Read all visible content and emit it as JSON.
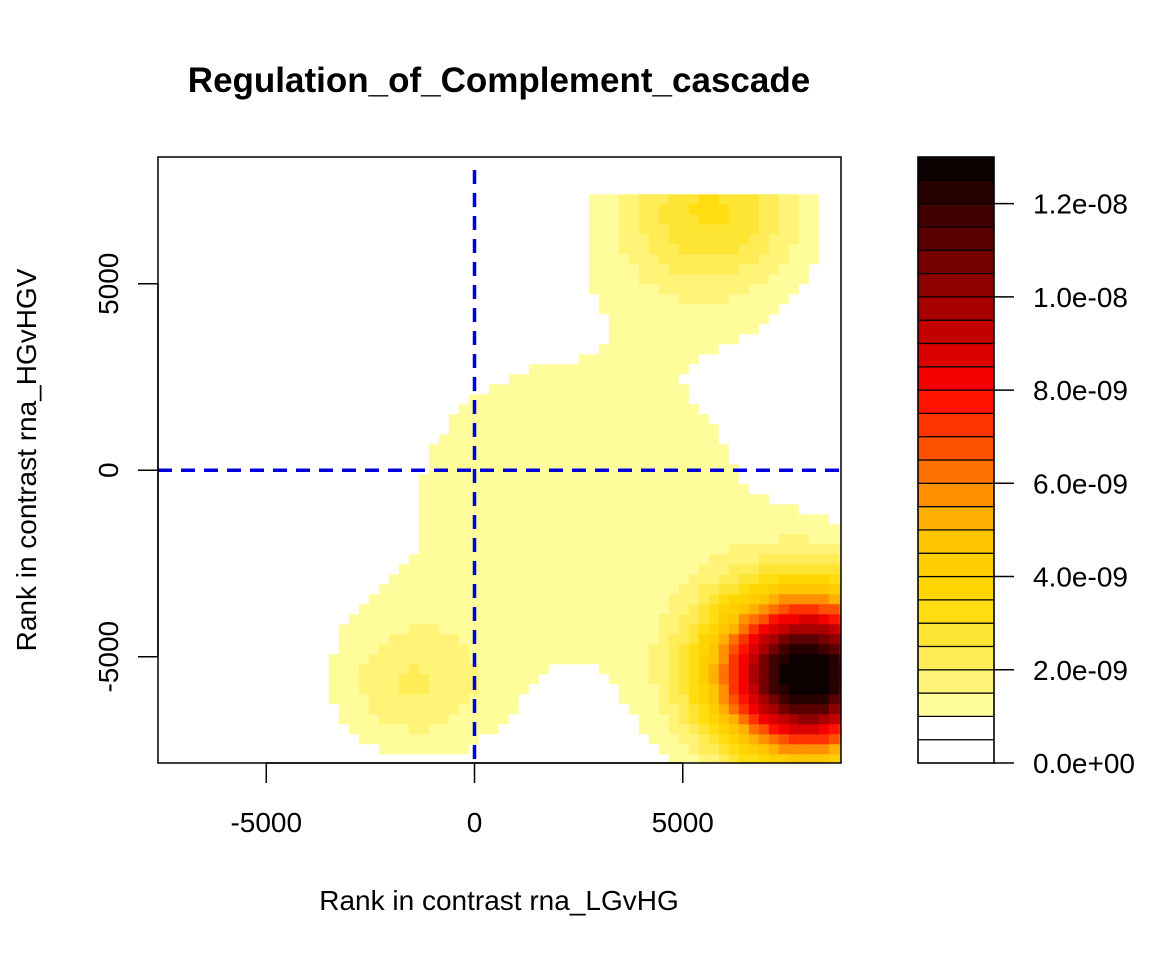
{
  "chart_data": {
    "type": "heatmap",
    "title": "Regulation_of_Complement_cascade",
    "xlabel": "Rank in contrast rna_LGvHG",
    "ylabel": "Rank in contrast rna_HGvHGV",
    "xlim": [
      -7600,
      8800
    ],
    "ylim": [
      -7850,
      8400
    ],
    "x_ticks": [
      -5000,
      0,
      5000
    ],
    "x_tick_labels": [
      "-5000",
      "0",
      "5000"
    ],
    "y_ticks": [
      -5000,
      0,
      5000
    ],
    "y_tick_labels": [
      "-5000",
      "0",
      "5000"
    ],
    "reference_lines": [
      {
        "axis": "x",
        "value": 0,
        "style": "dashed",
        "color": "#0000dd"
      },
      {
        "axis": "y",
        "value": 0,
        "style": "dashed",
        "color": "#0000dd"
      }
    ],
    "data_extent": {
      "x": [
        -7100,
        8800
      ],
      "y": [
        -7850,
        7400
      ]
    },
    "density_peaks": [
      {
        "x": 8000,
        "y": -5500,
        "density": 1.3e-08,
        "spread": 1500
      },
      {
        "x": 5700,
        "y": 7000,
        "density": 2.6e-09,
        "spread": 1600
      },
      {
        "x": -1500,
        "y": -5800,
        "density": 1.3e-09,
        "spread": 1300
      }
    ],
    "colorbar": {
      "min": 0,
      "max": 1.3e-08,
      "levels": 26,
      "tick_values": [
        0,
        2e-09,
        4e-09,
        6e-09,
        8e-09,
        1e-08,
        1.2e-08
      ],
      "tick_labels": [
        "0.0e+00",
        "2.0e-09",
        "4.0e-09",
        "6.0e-09",
        "8.0e-09",
        "1.0e-08",
        "1.2e-08"
      ],
      "palette": "heat"
    }
  }
}
